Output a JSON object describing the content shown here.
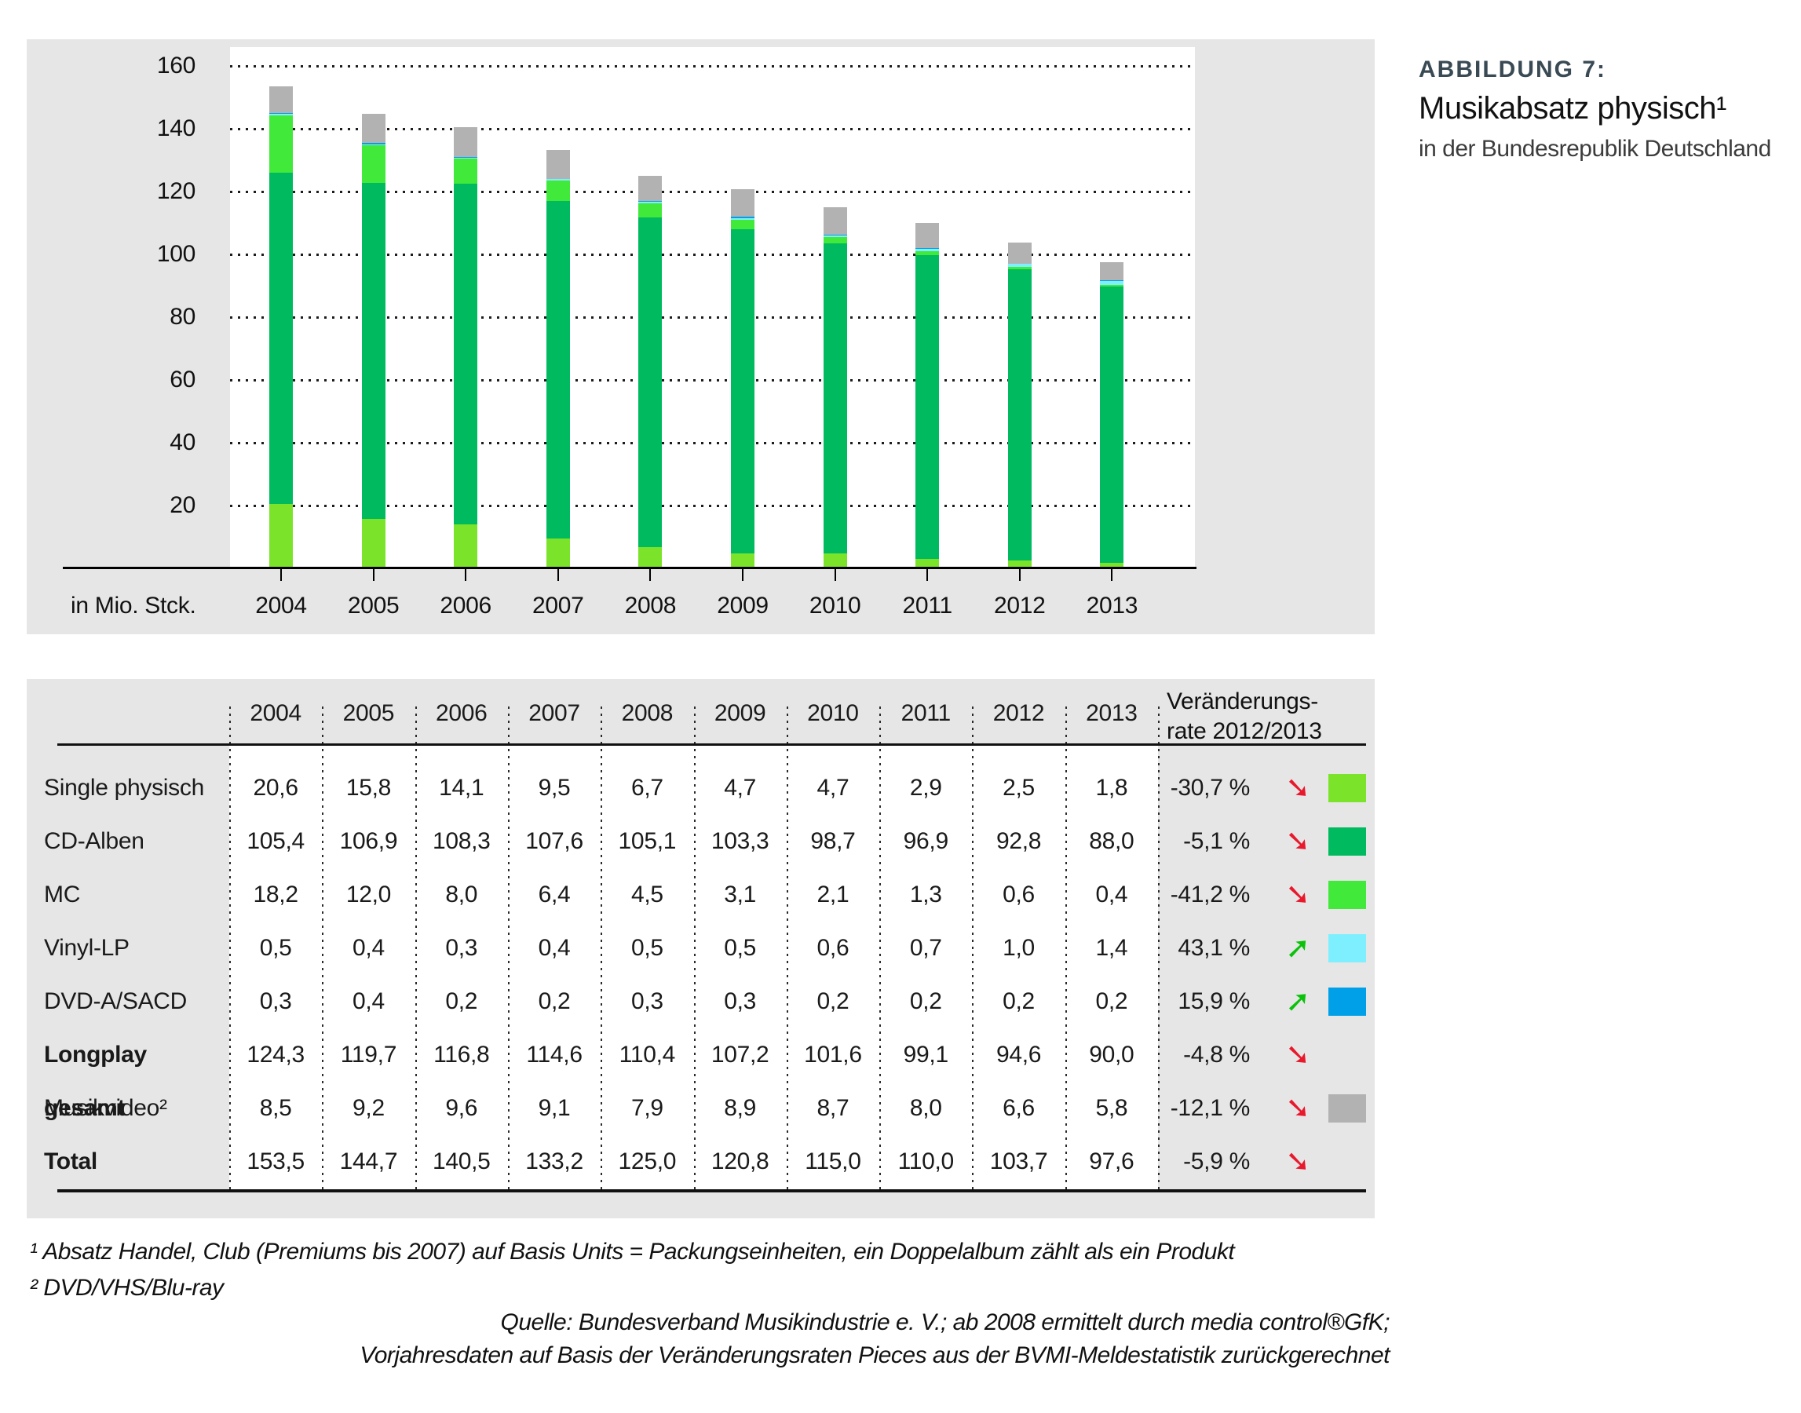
{
  "figure": {
    "label": "ABBILDUNG 7:",
    "title": "Musikabsatz physisch¹",
    "subtitle": "in der Bundesrepublik Deutschland"
  },
  "chart": {
    "unit_label": "in Mio. Stck.",
    "y_ticks": [
      160,
      140,
      120,
      100,
      80,
      60,
      40,
      20
    ]
  },
  "chart_data": {
    "type": "bar",
    "stacked": true,
    "title": "Musikabsatz physisch in der Bundesrepublik Deutschland",
    "ylabel": "in Mio. Stck.",
    "ylim": [
      0,
      160
    ],
    "grid": true,
    "legend_position": "table-right",
    "categories": [
      "2004",
      "2005",
      "2006",
      "2007",
      "2008",
      "2009",
      "2010",
      "2011",
      "2012",
      "2013"
    ],
    "series": [
      {
        "name": "Single physisch",
        "color": "#7be42a",
        "values": [
          20.6,
          15.8,
          14.1,
          9.5,
          6.7,
          4.7,
          4.7,
          2.9,
          2.5,
          1.8
        ]
      },
      {
        "name": "CD-Alben",
        "color": "#00ba5f",
        "values": [
          105.4,
          106.9,
          108.3,
          107.6,
          105.1,
          103.3,
          98.7,
          96.9,
          92.8,
          88.0
        ]
      },
      {
        "name": "MC",
        "color": "#40e93a",
        "values": [
          18.2,
          12.0,
          8.0,
          6.4,
          4.5,
          3.1,
          2.1,
          1.3,
          0.6,
          0.4
        ]
      },
      {
        "name": "Vinyl-LP",
        "color": "#7eeffe",
        "values": [
          0.5,
          0.4,
          0.3,
          0.4,
          0.5,
          0.5,
          0.6,
          0.7,
          1.0,
          1.4
        ]
      },
      {
        "name": "DVD-A/SACD",
        "color": "#00a0e9",
        "values": [
          0.3,
          0.4,
          0.2,
          0.2,
          0.3,
          0.3,
          0.2,
          0.2,
          0.2,
          0.2
        ]
      },
      {
        "name": "Musikvideo",
        "color": "#b2b2b2",
        "values": [
          8.5,
          9.2,
          9.6,
          9.1,
          7.9,
          8.9,
          8.7,
          8.0,
          6.6,
          5.8
        ]
      }
    ]
  },
  "table": {
    "col_headers": [
      "2004",
      "2005",
      "2006",
      "2007",
      "2008",
      "2009",
      "2010",
      "2011",
      "2012",
      "2013"
    ],
    "change_header_line1": "Veränderungs-",
    "change_header_line2": "rate 2012/2013",
    "rows": [
      {
        "label": "Single physisch",
        "bold": false,
        "values": [
          "20,6",
          "15,8",
          "14,1",
          "9,5",
          "6,7",
          "4,7",
          "4,7",
          "2,9",
          "2,5",
          "1,8"
        ],
        "change": "-30,7 %",
        "trend": "down",
        "chip": "#7be42a"
      },
      {
        "label": "CD-Alben",
        "bold": false,
        "values": [
          "105,4",
          "106,9",
          "108,3",
          "107,6",
          "105,1",
          "103,3",
          "98,7",
          "96,9",
          "92,8",
          "88,0"
        ],
        "change": "-5,1 %",
        "trend": "down",
        "chip": "#00ba5f"
      },
      {
        "label": "MC",
        "bold": false,
        "values": [
          "18,2",
          "12,0",
          "8,0",
          "6,4",
          "4,5",
          "3,1",
          "2,1",
          "1,3",
          "0,6",
          "0,4"
        ],
        "change": "-41,2 %",
        "trend": "down",
        "chip": "#40e93a"
      },
      {
        "label": "Vinyl-LP",
        "bold": false,
        "values": [
          "0,5",
          "0,4",
          "0,3",
          "0,4",
          "0,5",
          "0,5",
          "0,6",
          "0,7",
          "1,0",
          "1,4"
        ],
        "change": "43,1 %",
        "trend": "up",
        "chip": "#7eeffe"
      },
      {
        "label": "DVD-A/SACD",
        "bold": false,
        "values": [
          "0,3",
          "0,4",
          "0,2",
          "0,2",
          "0,3",
          "0,3",
          "0,2",
          "0,2",
          "0,2",
          "0,2"
        ],
        "change": "15,9 %",
        "trend": "up",
        "chip": "#00a0e9"
      },
      {
        "label": "Longplay gesamt",
        "bold": true,
        "values": [
          "124,3",
          "119,7",
          "116,8",
          "114,6",
          "110,4",
          "107,2",
          "101,6",
          "99,1",
          "94,6",
          "90,0"
        ],
        "change": "-4,8 %",
        "trend": "down",
        "chip": null
      },
      {
        "label": "Musikvideo²",
        "bold": false,
        "values": [
          "8,5",
          "9,2",
          "9,6",
          "9,1",
          "7,9",
          "8,9",
          "8,7",
          "8,0",
          "6,6",
          "5,8"
        ],
        "change": "-12,1 %",
        "trend": "down",
        "chip": "#b2b2b2"
      },
      {
        "label": "Total",
        "bold": true,
        "values": [
          "153,5",
          "144,7",
          "140,5",
          "133,2",
          "125,0",
          "120,8",
          "115,0",
          "110,0",
          "103,7",
          "97,6"
        ],
        "change": "-5,9 %",
        "trend": "down",
        "chip": null
      }
    ]
  },
  "footnotes": {
    "line1": "¹ Absatz Handel, Club (Premiums bis 2007) auf Basis Units = Packungseinheiten, ein Doppelalbum zählt als ein Produkt",
    "line2": "² DVD/VHS/Blu-ray"
  },
  "source": {
    "line1": "Quelle: Bundesverband Musikindustrie e. V.; ab 2008 ermittelt durch media control®GfK;",
    "line2": "Vorjahresdaten auf Basis der Veränderungsraten Pieces aus der BVMI-Meldestatistik zurückgerechnet"
  },
  "colors": {
    "panel_background": "#e6e6e6",
    "plot_background": "#ffffff",
    "axis": "#000000",
    "figure_label": "#3a4a54",
    "arrow_down": "#e8192c",
    "arrow_up": "#0bc20b"
  },
  "icons": {
    "trend_down": "➘",
    "trend_up": "➚"
  }
}
